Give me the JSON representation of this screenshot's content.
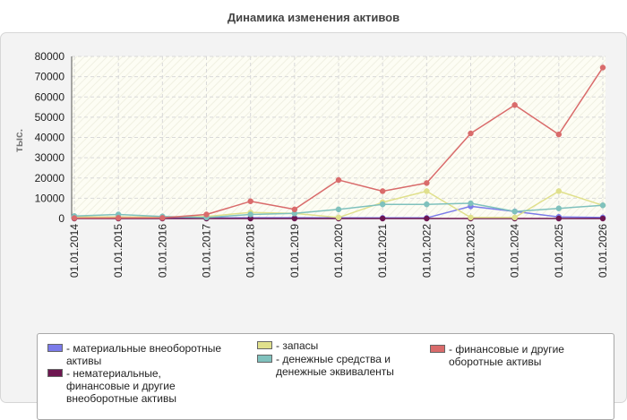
{
  "chart_data": {
    "type": "line",
    "title": "Динамика изменения активов",
    "ylabel": "тыс.",
    "xlabel": "",
    "ylim": [
      0,
      80000
    ],
    "yticks": [
      0,
      10000,
      20000,
      30000,
      40000,
      50000,
      60000,
      70000,
      80000
    ],
    "grid": true,
    "legend_position": "bottom",
    "x": [
      "01.01.2014",
      "01.01.2015",
      "01.01.2016",
      "01.01.2017",
      "01.01.2018",
      "01.01.2019",
      "01.01.2020",
      "01.01.2021",
      "01.01.2022",
      "01.01.2023",
      "01.01.2024",
      "01.01.2025",
      "01.01.2026"
    ],
    "series": [
      {
        "name": "материальные внеоборотные активы",
        "color": "#7b7bea",
        "values": [
          500,
          500,
          300,
          300,
          400,
          400,
          300,
          300,
          300,
          6000,
          3500,
          800,
          500
        ]
      },
      {
        "name": "нематериальные, финансовые и другие внеоборотные активы",
        "color": "#6d1650",
        "values": [
          0,
          0,
          0,
          0,
          0,
          0,
          0,
          0,
          0,
          0,
          0,
          0,
          0
        ]
      },
      {
        "name": "запасы",
        "color": "#e0e08c",
        "values": [
          800,
          800,
          700,
          1000,
          3000,
          2500,
          500,
          8000,
          13500,
          500,
          500,
          13500,
          6500
        ]
      },
      {
        "name": "денежные средства и денежные эквиваленты",
        "color": "#7fc1bd",
        "values": [
          1200,
          2000,
          1000,
          500,
          2000,
          2500,
          4500,
          7000,
          7000,
          7500,
          3500,
          5000,
          6500
        ]
      },
      {
        "name": "финансовые и другие оборотные активы",
        "color": "#d96b6b",
        "values": [
          200,
          300,
          300,
          2000,
          8500,
          4500,
          19000,
          13500,
          17500,
          42000,
          56000,
          41500,
          74500
        ]
      }
    ]
  },
  "legend": {
    "items": [
      {
        "label_lines": [
          "- материальные внеоборотные",
          "активы"
        ],
        "color": "#7b7bea"
      },
      {
        "label_lines": [
          "- нематериальные,",
          "финансовые и другие",
          "внеоборотные активы"
        ],
        "color": "#6d1650"
      },
      {
        "label_lines": [
          "- запасы"
        ],
        "color": "#e0e08c"
      },
      {
        "label_lines": [
          "- денежные средства и",
          "денежные эквиваленты"
        ],
        "color": "#7fc1bd"
      },
      {
        "label_lines": [
          "- финансовые и другие",
          "оборотные активы"
        ],
        "color": "#d96b6b"
      }
    ]
  }
}
